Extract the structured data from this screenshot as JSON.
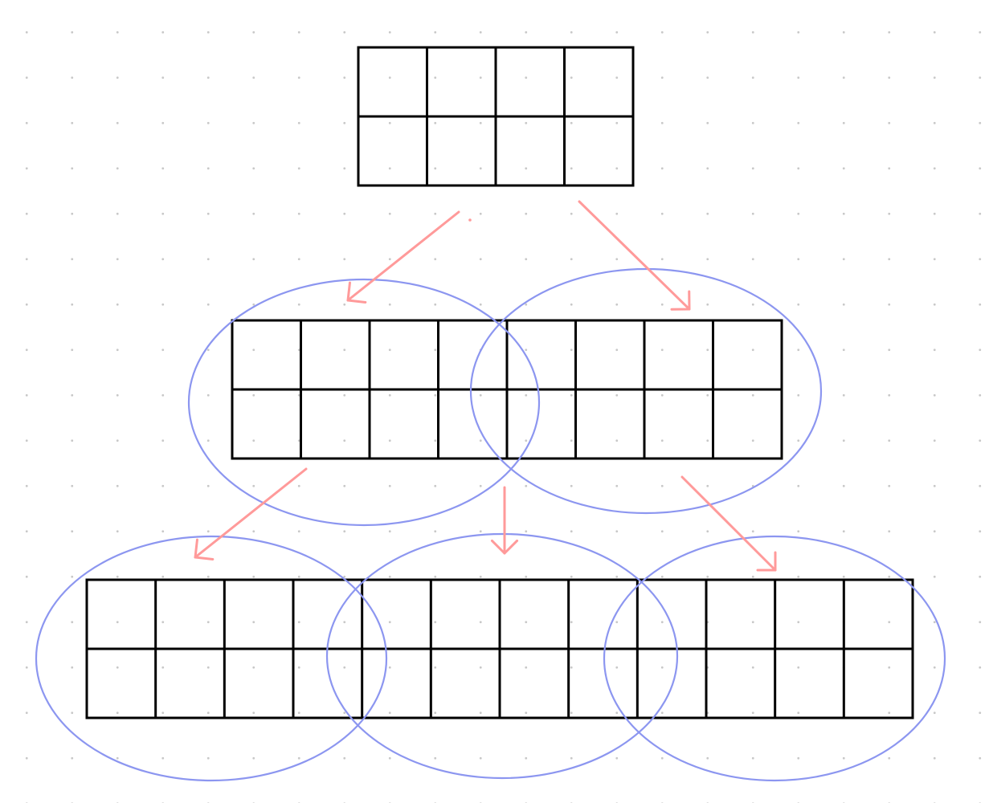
{
  "diagram": {
    "colors": {
      "grid_stroke": "#000000",
      "ellipse_stroke": "#8c96f0",
      "arrow_stroke": "#ff9a9a",
      "background_dots": "#c8c8c8",
      "background": "#ffffff"
    },
    "blocks": [
      {
        "name": "root-block",
        "level": 0,
        "rows": 2,
        "cols": 4
      },
      {
        "name": "level1-block",
        "level": 1,
        "rows": 2,
        "cols": 8
      },
      {
        "name": "level2-block",
        "level": 2,
        "rows": 2,
        "cols": 12
      }
    ],
    "groups": [
      {
        "name": "level1-left-group",
        "level": 1
      },
      {
        "name": "level1-right-group",
        "level": 1
      },
      {
        "name": "level2-left-group",
        "level": 2
      },
      {
        "name": "level2-middle-group",
        "level": 2
      },
      {
        "name": "level2-right-group",
        "level": 2
      }
    ],
    "arrows": [
      {
        "name": "arrow-root-to-left",
        "from": "root-block",
        "to": "level1-left-group"
      },
      {
        "name": "arrow-root-to-right",
        "from": "root-block",
        "to": "level1-right-group"
      },
      {
        "name": "arrow-left-to-level2-left",
        "from": "level1-left-group",
        "to": "level2-left-group"
      },
      {
        "name": "arrow-middle-to-level2-middle",
        "from": "level1-left-group",
        "to": "level2-middle-group"
      },
      {
        "name": "arrow-right-to-level2-right",
        "from": "level1-right-group",
        "to": "level2-right-group"
      }
    ]
  }
}
